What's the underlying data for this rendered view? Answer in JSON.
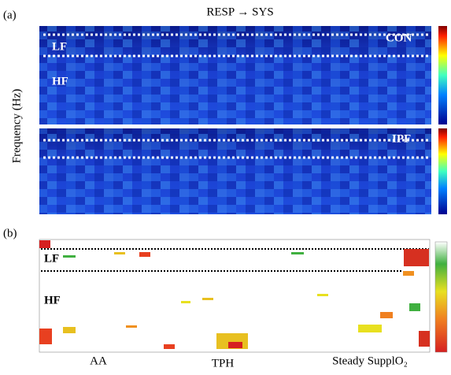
{
  "title": "RESP → SYS",
  "panel_a": {
    "label": "(a)",
    "y_axis_label": "Frequency (Hz)",
    "top": {
      "group": "CON",
      "band_high": "LF",
      "band_low": "HF"
    },
    "bottom": {
      "group": "IPF"
    }
  },
  "panel_b": {
    "label": "(b)",
    "band_high": "LF",
    "band_low": "HF",
    "phases": [
      "AA",
      "TPH",
      "Steady SupplO₂"
    ]
  }
}
